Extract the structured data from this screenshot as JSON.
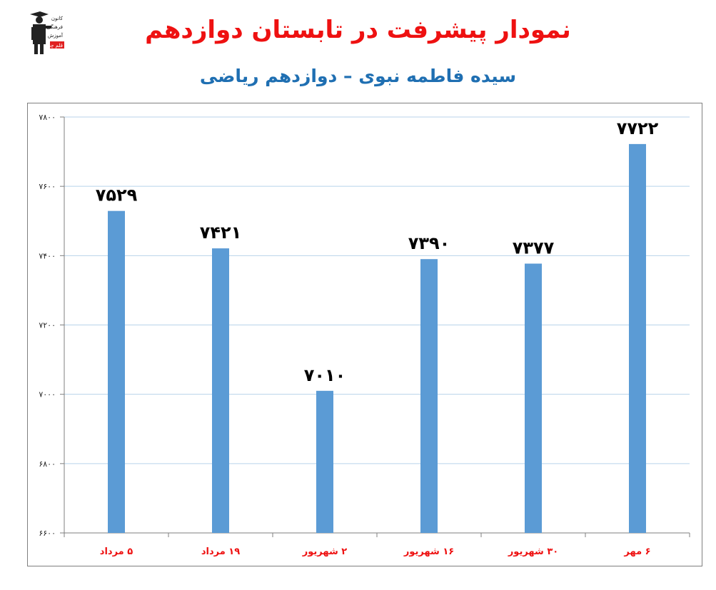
{
  "header": {
    "title": "نمودار پیشرفت در تابستان دوازدهم",
    "subtitle": "سیده فاطمه نبوی – دوازدهم ریاضی",
    "logo_text": [
      "کانون",
      "فرهنگی",
      "آموزش",
      "قلم چی"
    ]
  },
  "colors": {
    "title": "#ee1111",
    "subtitle": "#1f6fb2",
    "bar": "#5b9bd5",
    "category": "#ee1111",
    "gridline": "#b8d3ea"
  },
  "chart_data": {
    "type": "bar",
    "title": "",
    "xlabel": "",
    "ylabel": "",
    "categories": [
      "۵ مرداد",
      "۱۹ مرداد",
      "۲ شهریور",
      "۱۶ شهریور",
      "۳۰ شهریور",
      "۶ مهر"
    ],
    "values": [
      7529,
      7421,
      7010,
      7390,
      7377,
      7722
    ],
    "value_labels": [
      "۷۵۲۹",
      "۷۴۲۱",
      "۷۰۱۰",
      "۷۳۹۰",
      "۷۳۷۷",
      "۷۷۲۲"
    ],
    "ylim": [
      6600,
      7800
    ],
    "yticks": [
      6600,
      6800,
      7000,
      7200,
      7400,
      7600,
      7800
    ],
    "ytick_labels": [
      "۶۶۰۰",
      "۶۸۰۰",
      "۷۰۰۰",
      "۷۲۰۰",
      "۷۴۰۰",
      "۷۶۰۰",
      "۷۸۰۰"
    ],
    "grid": true,
    "legend": "none"
  }
}
